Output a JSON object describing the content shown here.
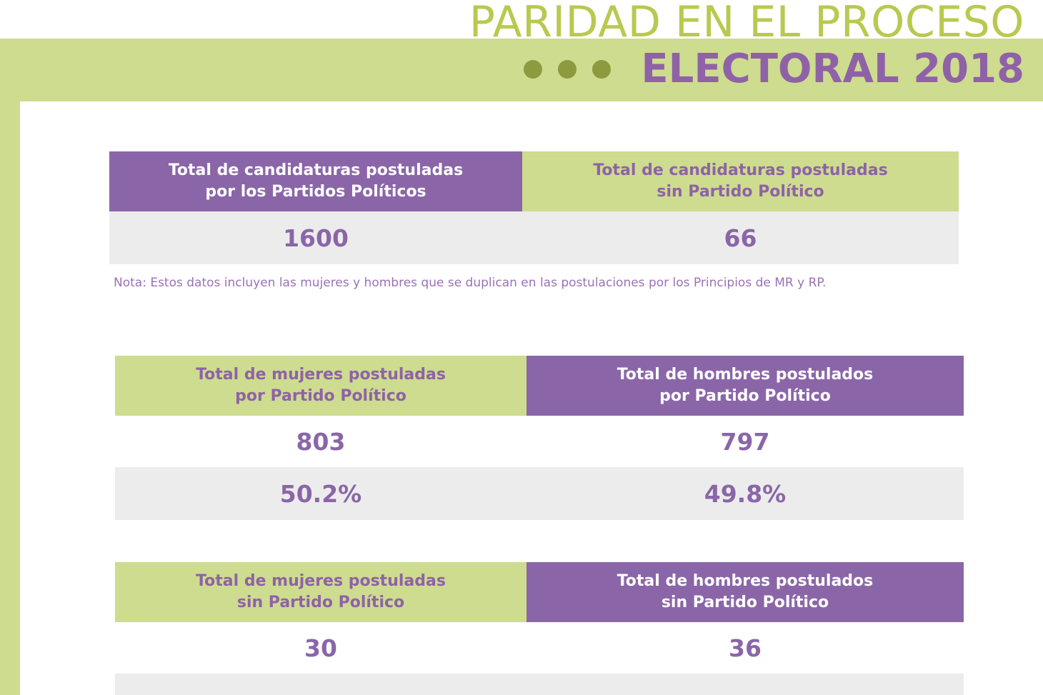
{
  "header": {
    "title_line1": "PARIDAD EN EL PROCESO",
    "title_line2": "ELECTORAL 2018"
  },
  "table1": {
    "col1_header": "Total de candidaturas postuladas\npor los Partidos Políticos",
    "col2_header": "Total de candidaturas postuladas\nsin Partido Político",
    "col1_value": "1600",
    "col2_value": "66"
  },
  "note": "Nota: Estos datos incluyen las mujeres y hombres que se duplican en las postulaciones por los Principios de MR y RP.",
  "table2": {
    "col1_header": "Total de mujeres postuladas\npor Partido Político",
    "col2_header": "Total de hombres postulados\npor Partido Político",
    "col1_count": "803",
    "col2_count": "797",
    "col1_pct": "50.2%",
    "col2_pct": "49.8%"
  },
  "table3": {
    "col1_header": "Total de mujeres postuladas\nsin Partido Político",
    "col2_header": "Total de hombres postulados\nsin Partido Político",
    "col1_count": "30",
    "col2_count": "36"
  },
  "colors": {
    "green": "#cddc8e",
    "purple": "#8a66a8",
    "olive": "#b9c94f",
    "gray": "#ececec"
  }
}
